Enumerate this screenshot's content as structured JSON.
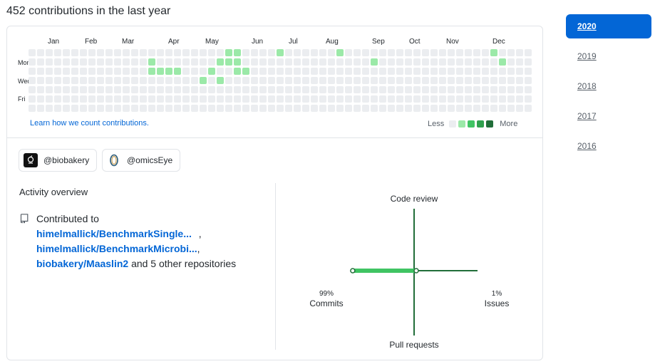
{
  "heading": "452 contributions in the last year",
  "calendar": {
    "months": [
      {
        "label": "Jan",
        "week": 3
      },
      {
        "label": "Feb",
        "week": 7
      },
      {
        "label": "Mar",
        "week": 11
      },
      {
        "label": "Apr",
        "week": 16
      },
      {
        "label": "May",
        "week": 20
      },
      {
        "label": "Jun",
        "week": 25
      },
      {
        "label": "Jul",
        "week": 29
      },
      {
        "label": "Aug",
        "week": 33
      },
      {
        "label": "Sep",
        "week": 38
      },
      {
        "label": "Oct",
        "week": 42
      },
      {
        "label": "Nov",
        "week": 46
      },
      {
        "label": "Dec",
        "week": 51
      }
    ],
    "weekdays": [
      "Mon",
      "Wed",
      "Fri"
    ],
    "colors": [
      "#ebedf0",
      "#9be9a8",
      "#40c463",
      "#30a14e",
      "#216e39"
    ],
    "days": [
      "0000000000000000000000011000010000001000000000000000001000000",
      "0000000000000010000000111000000000000000100000000000000100000",
      "0000000000000011110001001100000000000000000000000000000000000",
      "0000000000000000000010100000000000000000000000000000000000000",
      "0000000000000000000000000000000000000000000000000000000000000",
      "0000000000000000000000000000000000000000000000000000000000000",
      "0000000000000000000000000000000000000000000000000000000000000"
    ],
    "learn_link": "Learn how we count contributions.",
    "legend_less": "Less",
    "legend_more": "More"
  },
  "orgs": [
    {
      "handle": "@biobakery",
      "icon": "biobakery-logo-icon"
    },
    {
      "handle": "@omicsEye",
      "icon": "omicseye-logo-icon"
    }
  ],
  "activity": {
    "title": "Activity overview",
    "contributed_to": "Contributed to",
    "repos": [
      "himelmallick/BenchmarkSingle...",
      "himelmallick/BenchmarkMicrobi...",
      "biobakery/Maaslin2"
    ],
    "sep1": ",",
    "sep2": ",",
    "others": "and 5 other repositories"
  },
  "radar": {
    "code_review": "Code review",
    "commits_pct": "99%",
    "commits": "Commits",
    "issues_pct": "1%",
    "issues": "Issues",
    "pull_requests": "Pull requests",
    "commits_value": 99,
    "issues_value": 1
  },
  "years": [
    "2020",
    "2019",
    "2018",
    "2017",
    "2016"
  ],
  "active_year": "2020"
}
